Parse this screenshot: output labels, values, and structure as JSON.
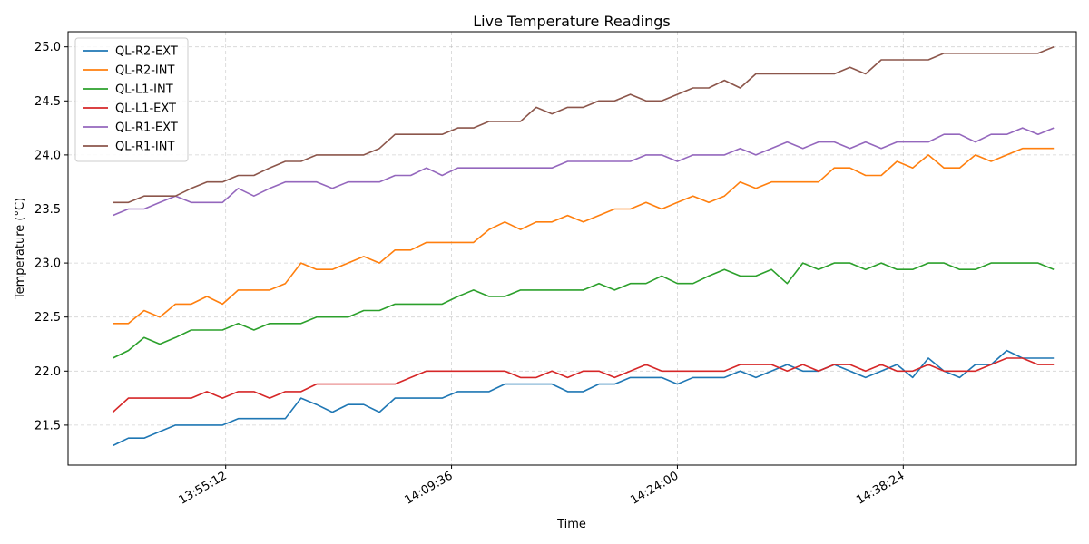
{
  "chart_data": {
    "type": "line",
    "title": "Live Temperature Readings",
    "xlabel": "Time",
    "ylabel": "Temperature (°C)",
    "xlim": [
      "13:45:09",
      "14:49:26"
    ],
    "ylim": [
      21.13,
      25.14
    ],
    "x_ticks": [
      "13:55:12",
      "14:09:36",
      "14:24:00",
      "14:38:24"
    ],
    "y_ticks": [
      21.5,
      22.0,
      22.5,
      23.0,
      23.5,
      24.0,
      24.5,
      25.0
    ],
    "y_tick_labels": [
      "21.5",
      "22.0",
      "22.5",
      "23.0",
      "23.5",
      "24.0",
      "24.5",
      "25.0"
    ],
    "grid": true,
    "legend_position": "top-left",
    "x": [
      "13:48:00",
      "13:49:00",
      "13:50:00",
      "13:51:00",
      "13:52:00",
      "13:53:00",
      "13:54:00",
      "13:55:00",
      "13:56:00",
      "13:57:00",
      "13:58:00",
      "13:59:00",
      "14:00:00",
      "14:01:00",
      "14:02:00",
      "14:03:00",
      "14:04:00",
      "14:05:00",
      "14:06:00",
      "14:07:00",
      "14:08:00",
      "14:09:00",
      "14:10:00",
      "14:11:00",
      "14:12:00",
      "14:13:00",
      "14:14:00",
      "14:15:00",
      "14:16:00",
      "14:17:00",
      "14:18:00",
      "14:19:00",
      "14:20:00",
      "14:21:00",
      "14:22:00",
      "14:23:00",
      "14:24:00",
      "14:25:00",
      "14:26:00",
      "14:27:00",
      "14:28:00",
      "14:29:00",
      "14:30:00",
      "14:31:00",
      "14:32:00",
      "14:33:00",
      "14:34:00",
      "14:35:00",
      "14:36:00",
      "14:37:00",
      "14:38:00",
      "14:39:00",
      "14:40:00",
      "14:41:00",
      "14:42:00",
      "14:43:00",
      "14:44:00",
      "14:45:00",
      "14:46:00",
      "14:47:00",
      "14:48:00"
    ],
    "series": [
      {
        "name": "QL-R2-EXT",
        "color": "#1f77b4",
        "values": [
          21.31,
          21.38,
          21.38,
          21.44,
          21.5,
          21.5,
          21.5,
          21.5,
          21.56,
          21.56,
          21.56,
          21.56,
          21.75,
          21.69,
          21.62,
          21.69,
          21.69,
          21.62,
          21.75,
          21.75,
          21.75,
          21.75,
          21.81,
          21.81,
          21.81,
          21.88,
          21.88,
          21.88,
          21.88,
          21.81,
          21.81,
          21.88,
          21.88,
          21.94,
          21.94,
          21.94,
          21.88,
          21.94,
          21.94,
          21.94,
          22.0,
          21.94,
          22.0,
          22.06,
          22.0,
          22.0,
          22.06,
          22.0,
          21.94,
          22.0,
          22.06,
          21.94,
          22.12,
          22.0,
          21.94,
          22.06,
          22.06,
          22.19,
          22.12,
          22.12,
          22.12
        ]
      },
      {
        "name": "QL-R2-INT",
        "color": "#ff7f0e",
        "values": [
          22.44,
          22.44,
          22.56,
          22.5,
          22.62,
          22.62,
          22.69,
          22.62,
          22.75,
          22.75,
          22.75,
          22.81,
          23.0,
          22.94,
          22.94,
          23.0,
          23.06,
          23.0,
          23.12,
          23.12,
          23.19,
          23.19,
          23.19,
          23.19,
          23.31,
          23.38,
          23.31,
          23.38,
          23.38,
          23.44,
          23.38,
          23.44,
          23.5,
          23.5,
          23.56,
          23.5,
          23.56,
          23.62,
          23.56,
          23.62,
          23.75,
          23.69,
          23.75,
          23.75,
          23.75,
          23.75,
          23.88,
          23.88,
          23.81,
          23.81,
          23.94,
          23.88,
          24.0,
          23.88,
          23.88,
          24.0,
          23.94,
          24.0,
          24.06,
          24.06,
          24.06
        ]
      },
      {
        "name": "QL-L1-INT",
        "color": "#2ca02c",
        "values": [
          22.12,
          22.19,
          22.31,
          22.25,
          22.31,
          22.38,
          22.38,
          22.38,
          22.44,
          22.38,
          22.44,
          22.44,
          22.44,
          22.5,
          22.5,
          22.5,
          22.56,
          22.56,
          22.62,
          22.62,
          22.62,
          22.62,
          22.69,
          22.75,
          22.69,
          22.69,
          22.75,
          22.75,
          22.75,
          22.75,
          22.75,
          22.81,
          22.75,
          22.81,
          22.81,
          22.88,
          22.81,
          22.81,
          22.88,
          22.94,
          22.88,
          22.88,
          22.94,
          22.81,
          23.0,
          22.94,
          23.0,
          23.0,
          22.94,
          23.0,
          22.94,
          22.94,
          23.0,
          23.0,
          22.94,
          22.94,
          23.0,
          23.0,
          23.0,
          23.0,
          22.94
        ]
      },
      {
        "name": "QL-L1-EXT",
        "color": "#d62728",
        "values": [
          21.62,
          21.75,
          21.75,
          21.75,
          21.75,
          21.75,
          21.81,
          21.75,
          21.81,
          21.81,
          21.75,
          21.81,
          21.81,
          21.88,
          21.88,
          21.88,
          21.88,
          21.88,
          21.88,
          21.94,
          22.0,
          22.0,
          22.0,
          22.0,
          22.0,
          22.0,
          21.94,
          21.94,
          22.0,
          21.94,
          22.0,
          22.0,
          21.94,
          22.0,
          22.06,
          22.0,
          22.0,
          22.0,
          22.0,
          22.0,
          22.06,
          22.06,
          22.06,
          22.0,
          22.06,
          22.0,
          22.06,
          22.06,
          22.0,
          22.06,
          22.0,
          22.0,
          22.06,
          22.0,
          22.0,
          22.0,
          22.06,
          22.12,
          22.12,
          22.06,
          22.06
        ]
      },
      {
        "name": "QL-R1-EXT",
        "color": "#9467bd",
        "values": [
          23.44,
          23.5,
          23.5,
          23.56,
          23.62,
          23.56,
          23.56,
          23.56,
          23.69,
          23.62,
          23.69,
          23.75,
          23.75,
          23.75,
          23.69,
          23.75,
          23.75,
          23.75,
          23.81,
          23.81,
          23.88,
          23.81,
          23.88,
          23.88,
          23.88,
          23.88,
          23.88,
          23.88,
          23.88,
          23.94,
          23.94,
          23.94,
          23.94,
          23.94,
          24.0,
          24.0,
          23.94,
          24.0,
          24.0,
          24.0,
          24.06,
          24.0,
          24.06,
          24.12,
          24.06,
          24.12,
          24.12,
          24.06,
          24.12,
          24.06,
          24.12,
          24.12,
          24.12,
          24.19,
          24.19,
          24.12,
          24.19,
          24.19,
          24.25,
          24.19,
          24.25
        ]
      },
      {
        "name": "QL-R1-INT",
        "color": "#8c564b",
        "values": [
          23.56,
          23.56,
          23.62,
          23.62,
          23.62,
          23.69,
          23.75,
          23.75,
          23.81,
          23.81,
          23.88,
          23.94,
          23.94,
          24.0,
          24.0,
          24.0,
          24.0,
          24.06,
          24.19,
          24.19,
          24.19,
          24.19,
          24.25,
          24.25,
          24.31,
          24.31,
          24.31,
          24.44,
          24.38,
          24.44,
          24.44,
          24.5,
          24.5,
          24.56,
          24.5,
          24.5,
          24.56,
          24.62,
          24.62,
          24.69,
          24.62,
          24.75,
          24.75,
          24.75,
          24.75,
          24.75,
          24.75,
          24.81,
          24.75,
          24.88,
          24.88,
          24.88,
          24.88,
          24.94,
          24.94,
          24.94,
          24.94,
          24.94,
          24.94,
          24.94,
          25.0
        ]
      }
    ]
  }
}
